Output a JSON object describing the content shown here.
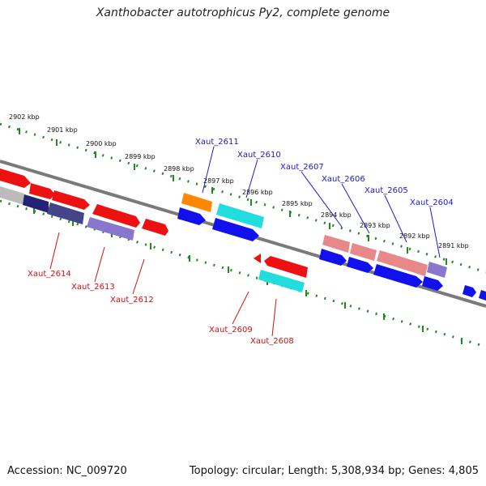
{
  "title": "Xanthobacter autotrophicus Py2, complete genome",
  "footer": {
    "accession": "Accession: NC_009720",
    "summary": "Topology: circular; Length: 5,308,934 bp; Genes: 4,805"
  },
  "colors": {
    "backbone": "#7a7a7a",
    "scale": "#1f8a1f",
    "label_top": "#1a1acc",
    "label_bottom": "#cc1111",
    "gene_red": "#ee1111",
    "gene_blue": "#1111ee",
    "gene_cyan": "#22dddd",
    "gene_pink": "#e88888",
    "gene_lavender": "#8877cc",
    "gene_navy": "#222277",
    "gene_slate": "#444488",
    "gene_orange": "#ff8800",
    "gene_gray": "#bbbbbb"
  },
  "scale_labels": [
    "2902 kbp",
    "2901 kbp",
    "2900 kbp",
    "2899 kbp",
    "2898 kbp",
    "2897 kbp",
    "2896 kbp",
    "2895 kbp",
    "2894 kbp",
    "2893 kbp",
    "2892 kbp",
    "2891 kbp"
  ],
  "top_labels": [
    "Xaut_2611",
    "Xaut_2610",
    "Xaut_2607",
    "Xaut_2606",
    "Xaut_2605",
    "Xaut_2604"
  ],
  "bottom_labels": [
    "Xaut_2614",
    "Xaut_2613",
    "Xaut_2612",
    "Xaut_2609",
    "Xaut_2608"
  ]
}
